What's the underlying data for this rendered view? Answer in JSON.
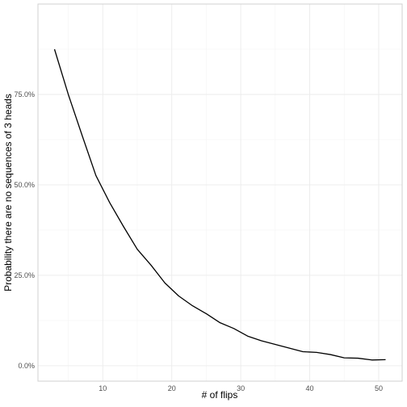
{
  "chart_data": {
    "type": "line",
    "title": "",
    "xlabel": "# of flips",
    "ylabel": "Probability there are no sequences of 3 heads",
    "xlim": [
      0.6,
      53.4
    ],
    "ylim": [
      -0.0425,
      1.0
    ],
    "x_ticks": [
      10,
      20,
      30,
      40,
      50
    ],
    "x_tick_labels": [
      "10",
      "20",
      "30",
      "40",
      "50"
    ],
    "y_ticks": [
      0,
      0.25,
      0.5,
      0.75
    ],
    "y_tick_labels": [
      "0.0%",
      "25.0%",
      "50.0%",
      "75.0%"
    ],
    "grid": true,
    "legend": "none",
    "line_color": "#000000",
    "series": [
      {
        "x": [
          3,
          5,
          7,
          9,
          11,
          13,
          15,
          17,
          19,
          21,
          23,
          25,
          27,
          29,
          31,
          33,
          35,
          37,
          39,
          41,
          43,
          45,
          47,
          49,
          51
        ],
        "y": [
          0.875,
          0.75,
          0.637,
          0.526,
          0.451,
          0.385,
          0.322,
          0.278,
          0.229,
          0.193,
          0.166,
          0.144,
          0.119,
          0.103,
          0.082,
          0.069,
          0.059,
          0.049,
          0.039,
          0.037,
          0.031,
          0.022,
          0.021,
          0.016,
          0.017
        ]
      }
    ]
  }
}
